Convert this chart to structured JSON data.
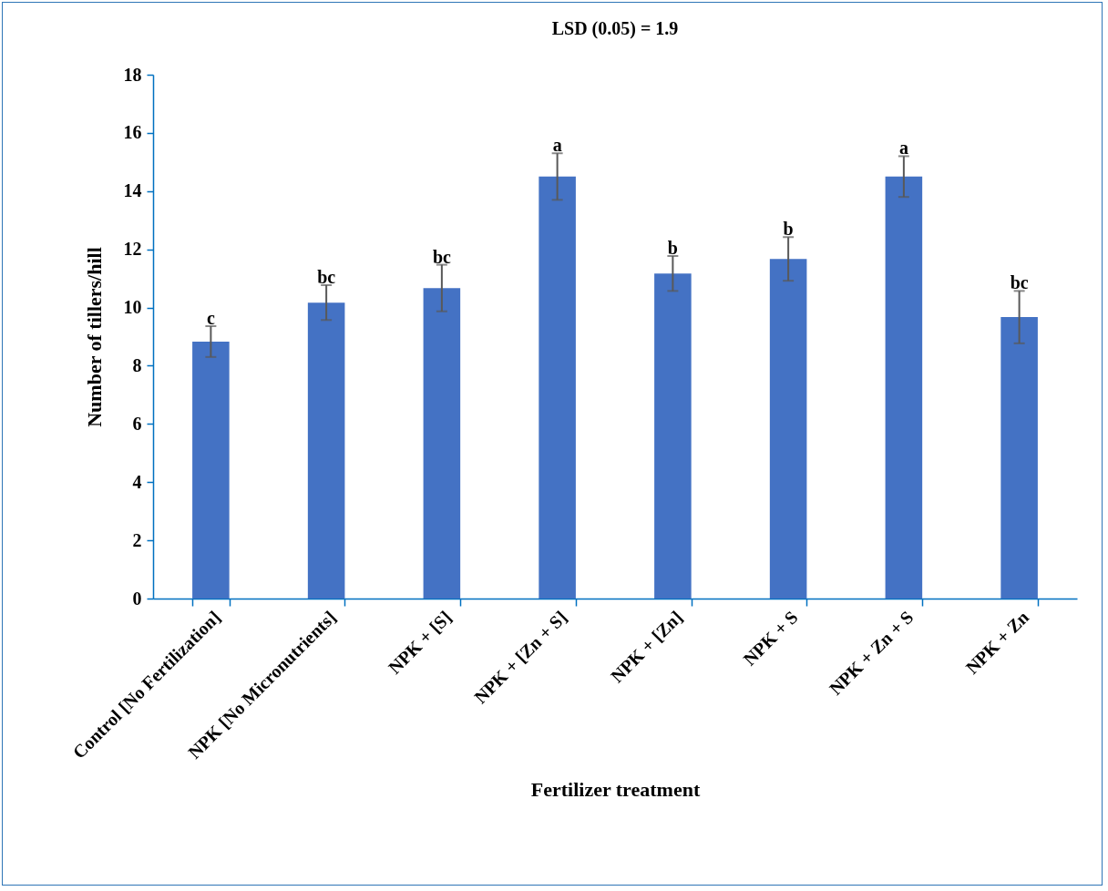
{
  "chart_data": {
    "type": "bar",
    "title": "LSD (0.05) = 1.9",
    "xlabel": "Fertilizer treatment",
    "ylabel": "Number of tillers/hill",
    "categories": [
      "Control [No Fertilization]",
      "NPK [No Micronutrients]",
      "NPK +  [S]",
      "NPK + [Zn + S]",
      "NPK + [Zn]",
      "NPK + S",
      "NPK + Zn + S",
      "NPK + Zn"
    ],
    "values": [
      8.83,
      10.17,
      10.67,
      14.5,
      11.17,
      11.67,
      14.5,
      9.67
    ],
    "errors": [
      0.53,
      0.6,
      0.8,
      0.8,
      0.6,
      0.75,
      0.7,
      0.9
    ],
    "color": "#4472c4",
    "ylim": [
      0,
      18
    ],
    "yticks": [
      0,
      2,
      4,
      6,
      8,
      10,
      12,
      14,
      16,
      18
    ],
    "grid": false,
    "annotations": [
      {
        "text": "c",
        "x": "Control [No Fertilization]",
        "y": 8.83
      },
      {
        "text": "bc",
        "x": "NPK [No Micronutrients]",
        "y": 10.17
      },
      {
        "text": "bc",
        "x": "NPK +  [S]",
        "y": 10.67
      },
      {
        "text": "a",
        "x": "NPK + [Zn + S]",
        "y": 14.5
      },
      {
        "text": "b",
        "x": "NPK + [Zn]",
        "y": 11.17
      },
      {
        "text": "b",
        "x": "NPK + S",
        "y": 11.67
      },
      {
        "text": "a",
        "x": "NPK + Zn + S",
        "y": 14.5
      },
      {
        "text": "bc",
        "x": "NPK + Zn",
        "y": 9.67
      }
    ]
  }
}
